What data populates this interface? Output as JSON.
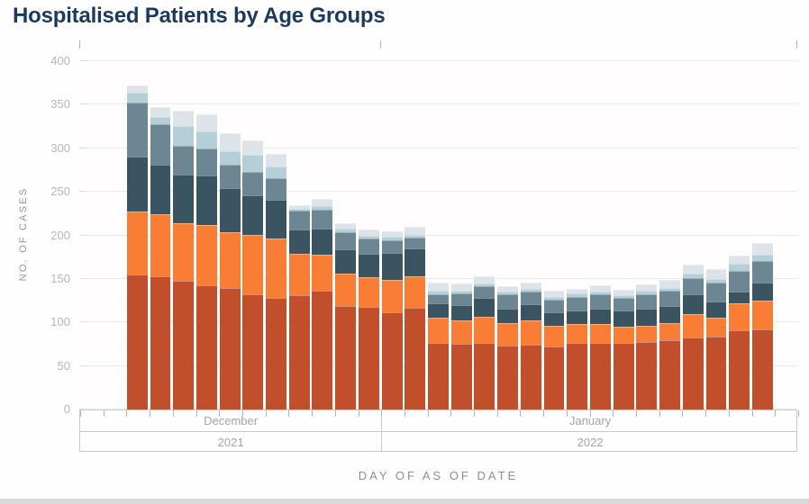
{
  "title": "Hospitalised Patients by Age Groups",
  "y_axis": {
    "label": "NO. OF CASES",
    "ticks": [
      0,
      50,
      100,
      150,
      200,
      250,
      300,
      350,
      400
    ]
  },
  "x_axis": {
    "label": "DAY OF AS OF DATE",
    "months": [
      {
        "label": "December",
        "year": "2021"
      },
      {
        "label": "January",
        "year": "2022"
      }
    ]
  },
  "colors": {
    "title": "#1b3a5f",
    "gridline": "#efe7ed",
    "axis_border": "#c9c9c9",
    "tick": "#b5b5b5"
  },
  "chart_data": {
    "type": "bar",
    "stacked": true,
    "title": "Hospitalised Patients by Age Groups",
    "xlabel": "DAY OF AS OF DATE",
    "ylabel": "NO. OF CASES",
    "ylim": [
      0,
      400
    ],
    "y_tick_step": 50,
    "grid": true,
    "legend_position": "none",
    "x_axis_sections": [
      {
        "month": "December",
        "year": "2021",
        "day_slots": 13
      },
      {
        "month": "January",
        "year": "2022",
        "day_slots": 18
      }
    ],
    "total_day_slots": 31,
    "first_bar_day_slot": 2,
    "bar_days": 28,
    "series_note": "stacked daily bars, segments listed bottom-to-top; no legend shown in chart",
    "series": [
      {
        "name": "segment-1-dark-rust",
        "color": "#c14f2b",
        "values": [
          155,
          153,
          148,
          143,
          140,
          132,
          128,
          131,
          136,
          119,
          118,
          112,
          117,
          77,
          75,
          76,
          73,
          74,
          72,
          77,
          77,
          76,
          78,
          80,
          83,
          84,
          91,
          92
        ]
      },
      {
        "name": "segment-2-orange",
        "color": "#f97d35",
        "values": [
          72,
          71,
          66,
          69,
          64,
          69,
          68,
          48,
          42,
          37,
          34,
          37,
          36,
          28,
          27,
          31,
          26,
          28,
          24,
          21,
          21,
          19,
          18,
          19,
          27,
          21,
          31,
          33
        ]
      },
      {
        "name": "segment-3-dark-slate",
        "color": "#3b5461",
        "values": [
          63,
          57,
          56,
          57,
          50,
          45,
          45,
          28,
          30,
          28,
          27,
          31,
          32,
          17,
          18,
          21,
          17,
          19,
          16,
          16,
          18,
          19,
          20,
          20,
          22,
          19,
          13,
          21
        ]
      },
      {
        "name": "segment-4-slate-gray",
        "color": "#6c8694",
        "values": [
          63,
          47,
          33,
          31,
          27,
          27,
          25,
          21,
          22,
          20,
          17,
          14,
          12,
          10,
          13,
          14,
          16,
          14,
          14,
          15,
          16,
          14,
          16,
          17,
          19,
          22,
          24,
          25
        ]
      },
      {
        "name": "segment-5-light-blue",
        "color": "#b5cfd8",
        "values": [
          11,
          8,
          23,
          19,
          16,
          20,
          13,
          3,
          4,
          4,
          4,
          5,
          4,
          4,
          4,
          3,
          3,
          4,
          3,
          4,
          3,
          3,
          4,
          4,
          5,
          4,
          8,
          7
        ]
      },
      {
        "name": "segment-6-pale-gray-blue",
        "color": "#dde4e9",
        "values": [
          8,
          11,
          17,
          20,
          20,
          16,
          15,
          4,
          8,
          6,
          7,
          6,
          9,
          10,
          8,
          8,
          7,
          7,
          7,
          6,
          8,
          7,
          8,
          9,
          10,
          11,
          10,
          13
        ]
      }
    ]
  }
}
